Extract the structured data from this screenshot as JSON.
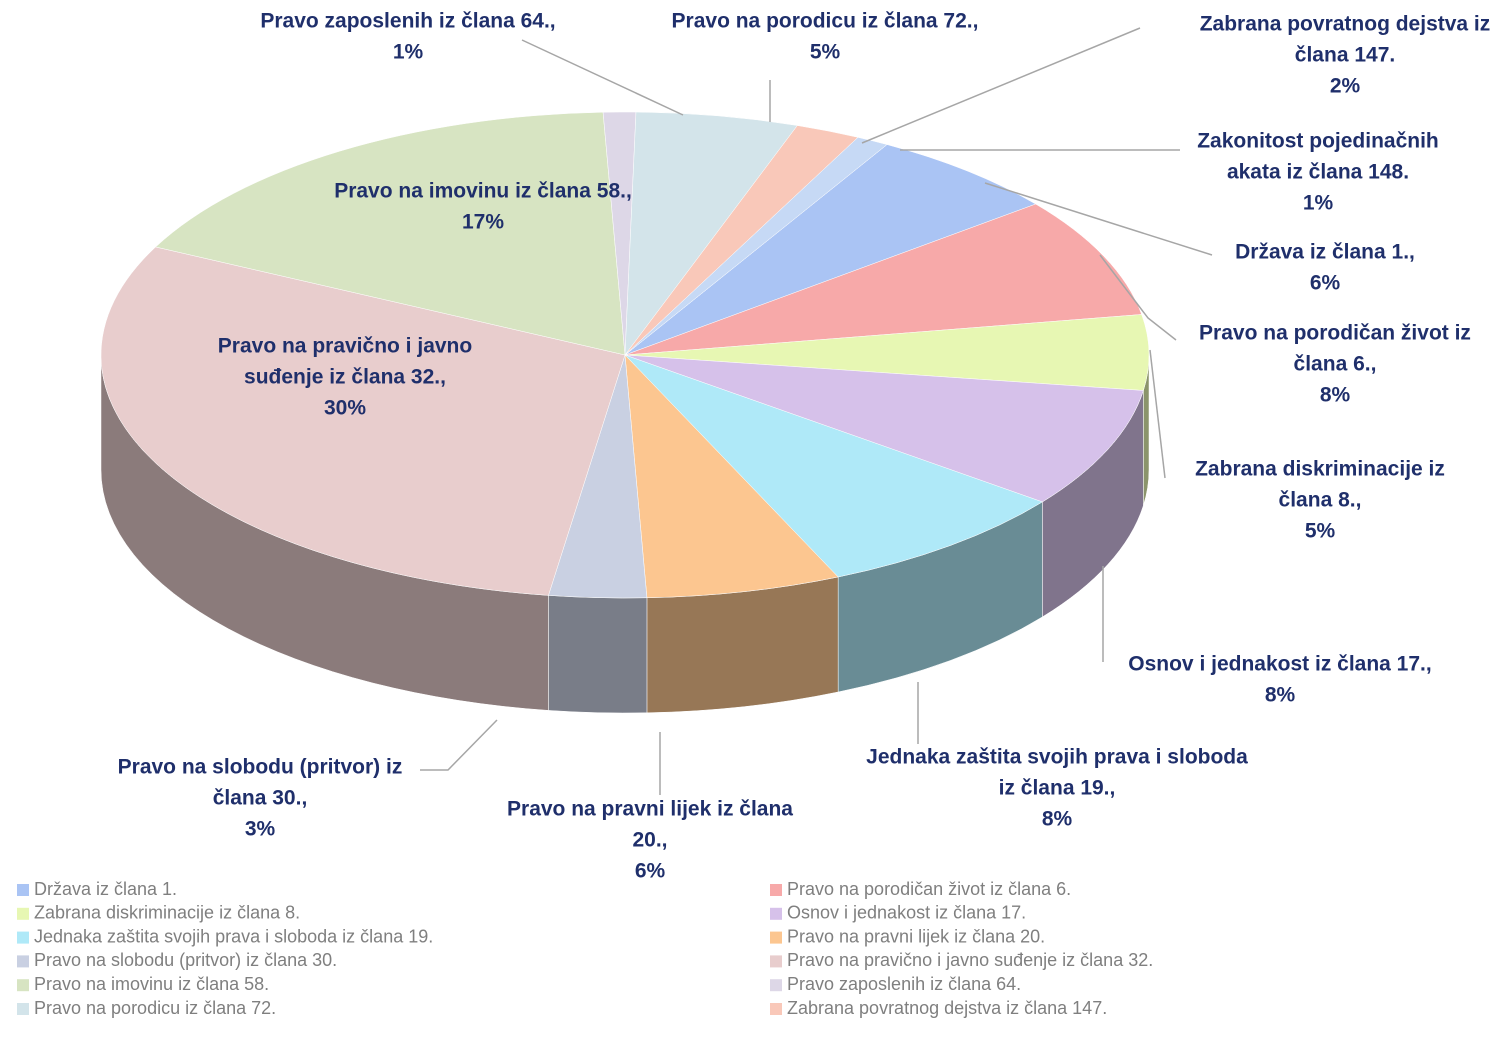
{
  "chart_data": {
    "type": "pie",
    "categories": [
      "Država iz člana 1.",
      "Pravo na porodičan život iz člana 6.",
      "Zabrana diskriminacije iz člana 8.",
      "Osnov i jednakost iz člana 17.",
      "Jednaka zaštita svojih prava i sloboda iz člana 19.",
      "Pravo na pravni lijek iz člana 20.",
      "Pravo na slobodu (pritvor) iz člana 30.",
      "Pravo na pravično i javno suđenje iz člana 32.",
      "Pravo na imovinu iz člana 58.",
      "Pravo zaposlenih iz člana 64.",
      "Pravo na porodicu iz člana 72.",
      "Zabrana povratnog dejstva iz člana 147.",
      "Zakonitost pojedinačnih akata iz člana 148."
    ],
    "values": [
      6,
      8,
      5,
      8,
      8,
      6,
      3,
      30,
      17,
      1,
      5,
      2,
      1
    ],
    "value_labels": [
      "6%",
      "8%",
      "5%",
      "8%",
      "8%",
      "6%",
      "3%",
      "30%",
      "17%",
      "1%",
      "5%",
      "2%",
      "1%"
    ],
    "data_labels": [
      [
        "Država iz člana 1.,"
      ],
      [
        "Pravo na porodičan život iz",
        "člana 6.,"
      ],
      [
        "Zabrana diskriminacije iz",
        "člana 8.,"
      ],
      [
        "Osnov i jednakost iz člana 17.,"
      ],
      [
        "Jednaka zaštita svojih prava i sloboda",
        "iz člana 19.,"
      ],
      [
        "Pravo na pravni lijek iz člana",
        "20.,"
      ],
      [
        "Pravo na slobodu (pritvor) iz",
        "člana 30.,"
      ],
      [
        "Pravo na pravično i javno",
        "suđenje iz člana 32.,"
      ],
      [
        "Pravo na imovinu iz člana 58.,"
      ],
      [
        "Pravo zaposlenih iz člana 64.,"
      ],
      [
        "Pravo na porodicu iz člana 72.,"
      ],
      [
        "Zabrana povratnog dejstva iz",
        "člana 147."
      ],
      [
        "Zakonitost pojedinačnih",
        "akata iz člana 148."
      ]
    ],
    "colors": [
      "#aac4f4",
      "#f7a9a9",
      "#e7f7b3",
      "#d6c1ea",
      "#afe9f8",
      "#fcc690",
      "#c9d0e2",
      "#e8cdcd",
      "#d7e4c2",
      "#ddd7e7",
      "#d3e4ea",
      "#f9c8b9",
      "#c6d9f5"
    ],
    "legend": true
  }
}
